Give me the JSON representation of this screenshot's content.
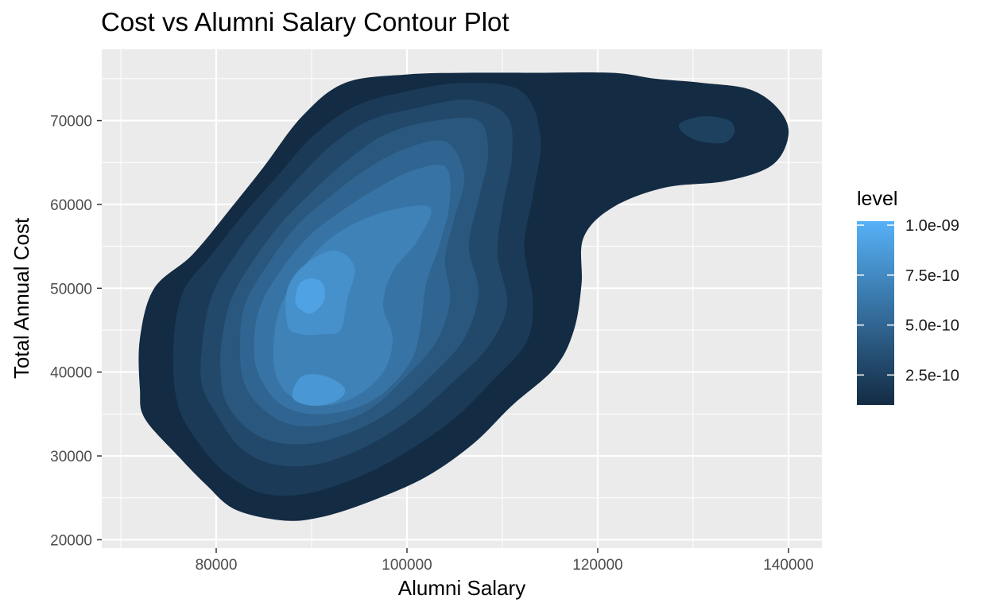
{
  "chart_data": {
    "type": "contour",
    "title": "Cost vs Alumni Salary Contour Plot",
    "xlabel": "Alumni Salary",
    "ylabel": "Total Annual Cost",
    "xlim": [
      68000,
      143500
    ],
    "ylim": [
      19000,
      78500
    ],
    "x_ticks": [
      80000,
      100000,
      120000,
      140000
    ],
    "x_tick_labels": [
      "80000",
      "100000",
      "120000",
      "140000"
    ],
    "y_ticks": [
      20000,
      30000,
      40000,
      50000,
      60000,
      70000
    ],
    "y_tick_labels": [
      "20000",
      "30000",
      "40000",
      "50000",
      "60000",
      "70000"
    ],
    "grid": true,
    "legend": {
      "title": "level",
      "position": "right",
      "range": [
        1e-10,
        1.02e-09
      ],
      "breaks": [
        1e-09,
        7.5e-10,
        5e-10,
        2.5e-10
      ],
      "labels": [
        "1.0e-09",
        "7.5e-10",
        "5.0e-10",
        "2.5e-10"
      ],
      "color_low": "#132B43",
      "color_high": "#56B1F7"
    },
    "density_peaks": [
      {
        "x": 89500,
        "y": 49500,
        "level": 1e-09
      },
      {
        "x": 90500,
        "y": 38000,
        "level": 8.6e-10
      }
    ],
    "contour_levels": [
      {
        "level": 1e-10,
        "outline": [
          [
            72000,
            44000
          ],
          [
            73500,
            50000
          ],
          [
            77500,
            54000
          ],
          [
            81500,
            59500
          ],
          [
            85000,
            64500
          ],
          [
            89000,
            70500
          ],
          [
            93500,
            74500
          ],
          [
            100000,
            75500
          ],
          [
            106000,
            75700
          ],
          [
            113000,
            75700
          ],
          [
            121500,
            75700
          ],
          [
            126000,
            75000
          ],
          [
            131000,
            74500
          ],
          [
            136000,
            73700
          ],
          [
            139000,
            71300
          ],
          [
            140000,
            68300
          ],
          [
            138300,
            64700
          ],
          [
            133500,
            62800
          ],
          [
            127000,
            62000
          ],
          [
            121500,
            59600
          ],
          [
            118500,
            56000
          ],
          [
            118300,
            50500
          ],
          [
            117500,
            45000
          ],
          [
            115500,
            40500
          ],
          [
            111000,
            36000
          ],
          [
            107000,
            31500
          ],
          [
            102000,
            27500
          ],
          [
            96000,
            24500
          ],
          [
            91000,
            22700
          ],
          [
            87000,
            22300
          ],
          [
            82000,
            23600
          ],
          [
            79000,
            26500
          ],
          [
            76000,
            30000
          ],
          [
            72500,
            34500
          ],
          [
            72000,
            38000
          ]
        ]
      },
      {
        "level": 2e-10,
        "outline": [
          [
            75500,
            43000
          ],
          [
            76500,
            49500
          ],
          [
            79500,
            54000
          ],
          [
            83000,
            59000
          ],
          [
            86500,
            63500
          ],
          [
            90000,
            68000
          ],
          [
            94500,
            71700
          ],
          [
            100000,
            73500
          ],
          [
            106000,
            74500
          ],
          [
            112000,
            73500
          ],
          [
            114000,
            68000
          ],
          [
            113200,
            61000
          ],
          [
            112300,
            55000
          ],
          [
            113200,
            48500
          ],
          [
            112500,
            43500
          ],
          [
            109000,
            39000
          ],
          [
            105000,
            34500
          ],
          [
            100000,
            30500
          ],
          [
            95000,
            27500
          ],
          [
            89500,
            25500
          ],
          [
            85000,
            25500
          ],
          [
            81500,
            27500
          ],
          [
            78500,
            31000
          ],
          [
            76000,
            36000
          ]
        ]
      },
      {
        "level": 3e-10,
        "outline": [
          [
            78500,
            43000
          ],
          [
            79500,
            49000
          ],
          [
            82000,
            54000
          ],
          [
            85000,
            58500
          ],
          [
            88500,
            63000
          ],
          [
            92000,
            67000
          ],
          [
            96000,
            70000
          ],
          [
            101000,
            71500
          ],
          [
            106500,
            72500
          ],
          [
            110500,
            70500
          ],
          [
            111000,
            65500
          ],
          [
            110000,
            59500
          ],
          [
            109500,
            54000
          ],
          [
            110500,
            48000
          ],
          [
            108500,
            43000
          ],
          [
            105000,
            39000
          ],
          [
            100500,
            34500
          ],
          [
            95500,
            31000
          ],
          [
            90500,
            29000
          ],
          [
            86000,
            29000
          ],
          [
            82500,
            31000
          ],
          [
            80000,
            35000
          ],
          [
            78500,
            38500
          ]
        ]
      },
      {
        "level": 4e-10,
        "outline": [
          [
            80500,
            43000
          ],
          [
            81500,
            48500
          ],
          [
            84000,
            53500
          ],
          [
            87000,
            58000
          ],
          [
            90500,
            62000
          ],
          [
            94000,
            65500
          ],
          [
            98000,
            68500
          ],
          [
            103000,
            70000
          ],
          [
            107500,
            70000
          ],
          [
            108500,
            66000
          ],
          [
            107500,
            60500
          ],
          [
            106500,
            55000
          ],
          [
            107500,
            49500
          ],
          [
            106000,
            44000
          ],
          [
            102500,
            39500
          ],
          [
            98500,
            35500
          ],
          [
            94500,
            33000
          ],
          [
            90000,
            31500
          ],
          [
            86000,
            31700
          ],
          [
            83000,
            33500
          ],
          [
            81000,
            36500
          ],
          [
            80500,
            39500
          ]
        ]
      },
      {
        "level": 5e-10,
        "outline": [
          [
            82500,
            42500
          ],
          [
            83000,
            48000
          ],
          [
            85500,
            53000
          ],
          [
            88500,
            57500
          ],
          [
            92000,
            61000
          ],
          [
            95500,
            64000
          ],
          [
            99500,
            66500
          ],
          [
            104000,
            67500
          ],
          [
            106000,
            63500
          ],
          [
            105000,
            58500
          ],
          [
            104000,
            53500
          ],
          [
            104500,
            48500
          ],
          [
            103000,
            43500
          ],
          [
            99500,
            39000
          ],
          [
            96000,
            35500
          ],
          [
            92000,
            33800
          ],
          [
            88000,
            33700
          ],
          [
            85000,
            35500
          ],
          [
            83000,
            38500
          ]
        ]
      },
      {
        "level": 6e-10,
        "outline": [
          [
            84000,
            42000
          ],
          [
            84500,
            47500
          ],
          [
            87000,
            52500
          ],
          [
            90000,
            56500
          ],
          [
            93500,
            59500
          ],
          [
            97000,
            62000
          ],
          [
            100500,
            64000
          ],
          [
            104000,
            64500
          ],
          [
            104500,
            60500
          ],
          [
            103500,
            55500
          ],
          [
            102000,
            50500
          ],
          [
            101500,
            46000
          ],
          [
            100500,
            41500
          ],
          [
            97500,
            37500
          ],
          [
            94000,
            35500
          ],
          [
            90000,
            35000
          ],
          [
            87000,
            36000
          ],
          [
            85000,
            38500
          ]
        ]
      },
      {
        "level": 7e-10,
        "outline": [
          [
            86000,
            42000
          ],
          [
            86500,
            47000
          ],
          [
            88500,
            51500
          ],
          [
            91500,
            55500
          ],
          [
            95000,
            58000
          ],
          [
            99000,
            59500
          ],
          [
            102500,
            59500
          ],
          [
            101000,
            55500
          ],
          [
            98500,
            52000
          ],
          [
            97500,
            48000
          ],
          [
            98500,
            44000
          ],
          [
            97500,
            40000
          ],
          [
            94500,
            37000
          ],
          [
            91000,
            36000
          ],
          [
            88000,
            37000
          ],
          [
            86500,
            39000
          ]
        ]
      },
      {
        "level": 8e-10,
        "outline": [
          [
            87500,
            45500
          ],
          [
            87500,
            50000
          ],
          [
            89500,
            53000
          ],
          [
            92500,
            54500
          ],
          [
            94500,
            52500
          ],
          [
            93700,
            48500
          ],
          [
            93000,
            45000
          ],
          [
            91000,
            44500
          ],
          [
            89000,
            44500
          ]
        ]
      },
      {
        "level": 8.4e-10,
        "outline": [
          [
            88000,
            37000
          ],
          [
            89000,
            39500
          ],
          [
            91500,
            39500
          ],
          [
            93500,
            38000
          ],
          [
            92500,
            36500
          ],
          [
            90000,
            36000
          ]
        ]
      },
      {
        "level": 9.2e-10,
        "outline": [
          [
            88300,
            48500
          ],
          [
            88700,
            50500
          ],
          [
            90000,
            51200
          ],
          [
            91200,
            50500
          ],
          [
            91300,
            48500
          ],
          [
            90000,
            47000
          ],
          [
            88800,
            47500
          ]
        ]
      },
      {
        "level": 2.5e-10,
        "outline": [
          [
            128500,
            69500
          ],
          [
            131000,
            70500
          ],
          [
            133800,
            70000
          ],
          [
            134300,
            68500
          ],
          [
            133000,
            67300
          ],
          [
            130000,
            67800
          ]
        ]
      }
    ]
  }
}
